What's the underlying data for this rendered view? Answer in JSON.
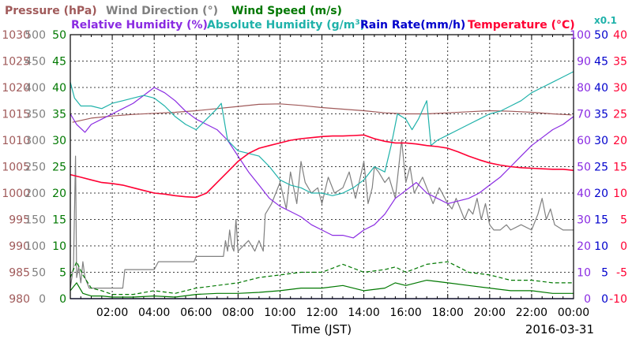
{
  "legend": {
    "pressure": "Pressure (hPa)",
    "wind_direction": "Wind Direction (°)",
    "wind_speed": "Wind Speed (m/s)",
    "relative_humidity": "Relative Humidity (%)",
    "absolute_humidity_pre": "Absolute Humidity (g/m",
    "absolute_humidity_sup": "3",
    "absolute_humidity_post": ")",
    "rain_rate": "Rain Rate(mm/h)",
    "temperature": "Temperature (°C)",
    "scale_note": "x0.1"
  },
  "colors": {
    "pressure": "#a05a5a",
    "wind_direction": "#808080",
    "wind_speed": "#007800",
    "relative_humidity": "#8a2be2",
    "absolute_humidity": "#20b2aa",
    "rain_rate": "#0000cc",
    "temperature": "#ff0033"
  },
  "footer": {
    "x_label": "Time (JST)",
    "date": "2016-03-31"
  },
  "chart_data": {
    "type": "line",
    "title": "",
    "xlabel": "Time (JST)",
    "x_range_hours": [
      0,
      24
    ],
    "x_ticks": [
      "02:00",
      "04:00",
      "06:00",
      "08:00",
      "10:00",
      "12:00",
      "14:00",
      "16:00",
      "18:00",
      "20:00",
      "22:00",
      "00:00"
    ],
    "grid": true,
    "axes": {
      "pressure": {
        "label": "Pressure (hPa)",
        "ticks": [
          "980",
          "985",
          "990",
          "995",
          "1000",
          "1005",
          "1010",
          "1015",
          "1020",
          "1025",
          "1030"
        ],
        "range": [
          980,
          1030
        ]
      },
      "wind_direction": {
        "label": "Wind Direction (°)",
        "ticks": [
          "0",
          "50",
          "100",
          "150",
          "200",
          "250",
          "300",
          "350",
          "400",
          "450",
          "500"
        ],
        "range": [
          0,
          500
        ]
      },
      "wind_speed": {
        "label": "Wind Speed (m/s)",
        "ticks": [
          "0",
          "5",
          "10",
          "15",
          "20",
          "25",
          "30",
          "35",
          "40",
          "45",
          "50"
        ],
        "range": [
          0,
          50
        ]
      },
      "humidity": {
        "label": "Relative Humidity (%)",
        "ticks": [
          "0",
          "10",
          "20",
          "30",
          "40",
          "50",
          "60",
          "70",
          "80",
          "90",
          "100"
        ],
        "range": [
          0,
          100
        ]
      },
      "rain_rate": {
        "label": "Rain Rate(mm/h)",
        "ticks": [
          "0",
          "5",
          "10",
          "15",
          "20",
          "25",
          "30",
          "35",
          "40",
          "45",
          "50"
        ],
        "range": [
          0,
          50
        ]
      },
      "temperature": {
        "label": "Temperature (°C)",
        "ticks": [
          "-10",
          "-5",
          "0",
          "5",
          "10",
          "15",
          "20",
          "25",
          "30",
          "35",
          "40"
        ],
        "range": [
          -10,
          40
        ]
      }
    },
    "series": [
      {
        "name": "Pressure (hPa)",
        "axis": "pressure",
        "style": "solid",
        "x": [
          0.1,
          1,
          2,
          3,
          4,
          5,
          6,
          7,
          8,
          9,
          10,
          11,
          12,
          13,
          14,
          15,
          16,
          17,
          18,
          19,
          20,
          21,
          22,
          23,
          23.9
        ],
        "values": [
          1013.4,
          1014.2,
          1014.6,
          1014.9,
          1015.1,
          1015.3,
          1015.6,
          1016.0,
          1016.4,
          1016.8,
          1016.9,
          1016.6,
          1016.2,
          1015.9,
          1015.6,
          1015.2,
          1015.0,
          1015.0,
          1015.2,
          1015.4,
          1015.6,
          1015.5,
          1015.3,
          1015.0,
          1014.8
        ]
      },
      {
        "name": "Wind Direction (°)",
        "axis": "wind_direction",
        "style": "solid",
        "x": [
          0,
          0.15,
          0.25,
          0.3,
          0.4,
          0.5,
          0.6,
          0.7,
          0.9,
          1.0,
          2.5,
          2.6,
          4.0,
          4.2,
          5.9,
          6.0,
          7.3,
          7.4,
          7.5,
          7.6,
          7.7,
          7.8,
          7.9,
          8.0,
          8.5,
          8.8,
          9.0,
          9.2,
          9.3,
          9.6,
          9.8,
          10.0,
          10.3,
          10.5,
          10.8,
          11.0,
          11.2,
          11.5,
          11.8,
          12.0,
          12.3,
          12.6,
          13.0,
          13.3,
          13.6,
          14.0,
          14.2,
          14.4,
          14.5,
          14.7,
          15.0,
          15.2,
          15.5,
          15.8,
          16.0,
          16.2,
          16.4,
          16.8,
          17.0,
          17.3,
          17.6,
          18.0,
          18.2,
          18.4,
          18.6,
          18.8,
          19.0,
          19.2,
          19.4,
          19.6,
          19.8,
          20.0,
          20.2,
          20.5,
          20.8,
          21.0,
          21.5,
          22.0,
          22.3,
          22.5,
          22.7,
          22.9,
          23.1,
          23.5,
          24.0
        ],
        "values": [
          20,
          60,
          270,
          40,
          60,
          30,
          70,
          40,
          20,
          20,
          20,
          55,
          55,
          70,
          70,
          80,
          80,
          110,
          90,
          130,
          100,
          90,
          150,
          90,
          110,
          90,
          110,
          90,
          160,
          180,
          200,
          220,
          170,
          240,
          180,
          260,
          220,
          200,
          210,
          180,
          230,
          200,
          210,
          240,
          190,
          260,
          180,
          210,
          250,
          240,
          220,
          230,
          190,
          300,
          220,
          250,
          200,
          230,
          210,
          180,
          210,
          180,
          170,
          190,
          170,
          150,
          170,
          160,
          190,
          150,
          180,
          140,
          130,
          130,
          140,
          130,
          140,
          130,
          160,
          190,
          150,
          170,
          140,
          130,
          130
        ]
      },
      {
        "name": "Wind Speed (m/s)",
        "axis": "wind_speed",
        "style": "solid",
        "x": [
          0,
          0.3,
          0.6,
          1.0,
          1.5,
          2.0,
          3.0,
          4.0,
          5.0,
          6.0,
          7.0,
          8.0,
          9.0,
          10.0,
          11.0,
          12.0,
          13.0,
          14.0,
          15.0,
          15.5,
          16.0,
          17.0,
          18.0,
          19.0,
          20.0,
          21.0,
          22.0,
          23.0,
          24.0
        ],
        "values": [
          1.5,
          3.0,
          1.0,
          0.5,
          0.5,
          0.3,
          0.3,
          0.5,
          0.3,
          0.8,
          1.0,
          1.0,
          1.2,
          1.5,
          2.0,
          2.0,
          2.5,
          1.5,
          2.0,
          3.0,
          2.5,
          3.5,
          3.0,
          2.5,
          2.0,
          1.5,
          1.5,
          1.0,
          1.0
        ]
      },
      {
        "name": "Wind Speed (m/s) gust",
        "axis": "wind_speed",
        "style": "dashed",
        "x": [
          0,
          0.3,
          0.6,
          1.0,
          1.5,
          2.0,
          3.0,
          4.0,
          5.0,
          6.0,
          7.0,
          8.0,
          9.0,
          10.0,
          11.0,
          12.0,
          13.0,
          14.0,
          15.0,
          15.5,
          16.0,
          17.0,
          18.0,
          19.0,
          20.0,
          21.0,
          22.0,
          23.0,
          24.0
        ],
        "values": [
          4.0,
          7.0,
          4.5,
          2.0,
          1.5,
          0.8,
          0.8,
          1.5,
          1.0,
          2.0,
          2.5,
          3.0,
          4.0,
          4.5,
          5.0,
          5.0,
          6.5,
          5.0,
          5.5,
          6.0,
          5.0,
          6.5,
          7.0,
          5.0,
          4.5,
          3.5,
          3.5,
          3.0,
          3.0
        ]
      },
      {
        "name": "Relative Humidity (%)",
        "axis": "humidity",
        "style": "solid",
        "x": [
          0,
          0.3,
          0.7,
          1.0,
          1.5,
          2.0,
          2.5,
          3.0,
          3.5,
          4.0,
          4.5,
          5.0,
          5.5,
          6.0,
          6.5,
          7.0,
          7.5,
          8.0,
          8.5,
          9.0,
          9.5,
          10.0,
          10.5,
          11.0,
          11.5,
          12.0,
          12.5,
          13.0,
          13.5,
          14.0,
          14.5,
          15.0,
          15.5,
          16.0,
          16.5,
          17.0,
          17.5,
          18.0,
          18.5,
          19.0,
          19.5,
          20.0,
          20.5,
          21.0,
          21.5,
          22.0,
          22.5,
          23.0,
          23.5,
          24.0
        ],
        "values": [
          70,
          66,
          63,
          66,
          68,
          70,
          72,
          74,
          77,
          80,
          78,
          75,
          71,
          68,
          66,
          64,
          60,
          54,
          48,
          43,
          38,
          35,
          33,
          31,
          28,
          26,
          24,
          24,
          23,
          26,
          28,
          32,
          38,
          41,
          44,
          40,
          38,
          36,
          37,
          38,
          40,
          43,
          46,
          50,
          54,
          58,
          61,
          64,
          66,
          69
        ]
      },
      {
        "name": "Absolute Humidity (g/m3) x0.1",
        "axis": "humidity",
        "style": "solid",
        "x": [
          0,
          0.2,
          0.5,
          1.0,
          1.5,
          2.0,
          2.5,
          3.0,
          3.5,
          4.0,
          4.5,
          5.0,
          5.5,
          6.0,
          6.5,
          7.0,
          7.2,
          7.5,
          8.0,
          8.5,
          9.0,
          9.5,
          10.0,
          10.5,
          11.0,
          11.5,
          12.0,
          12.5,
          13.0,
          13.5,
          14.0,
          14.5,
          15.0,
          15.3,
          15.6,
          16.0,
          16.3,
          16.6,
          17.0,
          17.2,
          17.5,
          18.0,
          18.5,
          19.0,
          19.5,
          20.0,
          20.5,
          21.0,
          21.5,
          22.0,
          22.5,
          23.0,
          23.5,
          24.0
        ],
        "values": [
          82,
          76,
          73,
          73,
          72,
          74,
          75,
          76,
          77,
          76,
          73,
          69,
          66,
          64,
          68,
          72,
          74,
          60,
          56,
          55,
          54,
          50,
          45,
          43,
          42,
          40,
          40,
          39,
          40,
          42,
          45,
          50,
          48,
          58,
          70,
          68,
          64,
          68,
          75,
          58,
          60,
          62,
          64,
          66,
          68,
          70,
          71,
          73,
          75,
          78,
          80,
          82,
          84,
          86
        ]
      },
      {
        "name": "Rain Rate(mm/h)",
        "axis": "rain_rate",
        "style": "solid",
        "x": [
          0,
          24
        ],
        "values": [
          0,
          0
        ]
      },
      {
        "name": "Temperature (°C)",
        "axis": "temperature",
        "style": "solid",
        "x": [
          0,
          0.5,
          1.0,
          1.5,
          2.0,
          2.5,
          3.0,
          3.5,
          4.0,
          4.5,
          5.0,
          5.5,
          6.0,
          6.5,
          7.0,
          7.5,
          8.0,
          8.5,
          9.0,
          9.5,
          10.0,
          10.5,
          11.0,
          11.5,
          12.0,
          12.5,
          13.0,
          13.5,
          14.0,
          14.5,
          15.0,
          15.5,
          16.0,
          16.5,
          17.0,
          17.5,
          18.0,
          18.5,
          19.0,
          19.5,
          20.0,
          20.5,
          21.0,
          21.5,
          22.0,
          22.5,
          23.0,
          23.5,
          24.0
        ],
        "values": [
          13.5,
          13.0,
          12.5,
          12.0,
          11.8,
          11.5,
          11.0,
          10.5,
          10.0,
          9.8,
          9.5,
          9.3,
          9.2,
          10.0,
          12.0,
          14.0,
          16.0,
          17.5,
          18.5,
          19.0,
          19.5,
          20.0,
          20.3,
          20.5,
          20.7,
          20.8,
          20.8,
          20.9,
          21.0,
          20.3,
          19.8,
          19.5,
          19.5,
          19.3,
          19.0,
          18.8,
          18.5,
          17.8,
          17.0,
          16.3,
          15.7,
          15.3,
          15.0,
          14.8,
          14.7,
          14.6,
          14.5,
          14.5,
          14.3
        ]
      }
    ]
  }
}
